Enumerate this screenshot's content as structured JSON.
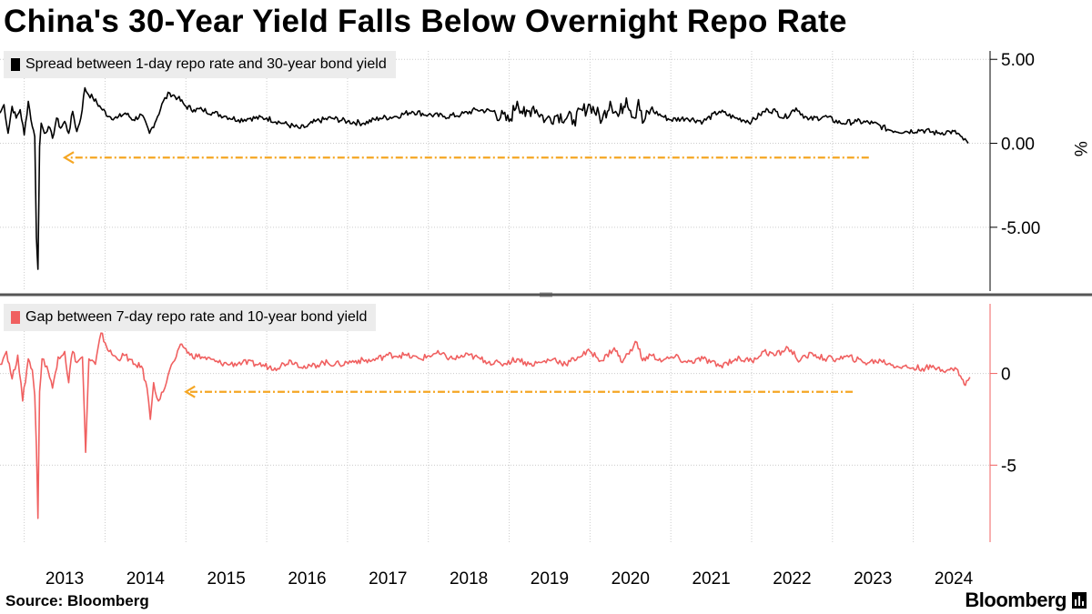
{
  "title": "China's 30-Year Yield Falls Below Overnight Repo Rate",
  "source": "Source: Bloomberg",
  "brand": "Bloomberg",
  "colors": {
    "series1": "#000000",
    "series2": "#f06060",
    "arrow": "#f5a623",
    "grid": "#cccccc"
  },
  "chart_data": [
    {
      "type": "line",
      "title": "",
      "ylabel": "%",
      "legend": "Spread between 1-day repo rate and 30-year bond yield",
      "legend_position": "top-left",
      "ylim": [
        -8.8,
        5.5
      ],
      "yticks": [
        5,
        0,
        -5
      ],
      "ytick_labels": [
        "5.00",
        "0.00",
        "-5.00"
      ],
      "x_labels": [
        "2013",
        "2014",
        "2015",
        "2016",
        "2017",
        "2018",
        "2019",
        "2020",
        "2021",
        "2022",
        "2023",
        "2024"
      ],
      "x_range": [
        2012.7,
        2024.95
      ],
      "series": [
        {
          "name": "Spread between 1-day repo rate and 30-year bond yield",
          "x": [
            2012.7,
            2012.75,
            2012.8,
            2012.85,
            2012.9,
            2012.95,
            2013.0,
            2013.05,
            2013.1,
            2013.13,
            2013.15,
            2013.17,
            2013.19,
            2013.21,
            2013.25,
            2013.3,
            2013.35,
            2013.4,
            2013.45,
            2013.5,
            2013.55,
            2013.6,
            2013.65,
            2013.7,
            2013.75,
            2013.78,
            2013.85,
            2013.95,
            2014.05,
            2014.15,
            2014.25,
            2014.35,
            2014.45,
            2014.55,
            2014.65,
            2014.72,
            2014.8,
            2014.9,
            2015.0,
            2015.1,
            2015.2,
            2015.35,
            2015.5,
            2015.65,
            2015.8,
            2016.0,
            2016.2,
            2016.4,
            2016.5,
            2016.6,
            2016.8,
            2017.0,
            2017.2,
            2017.4,
            2017.6,
            2017.8,
            2018.0,
            2018.2,
            2018.4,
            2018.6,
            2018.8,
            2019.0,
            2019.1,
            2019.2,
            2019.3,
            2019.45,
            2019.6,
            2019.8,
            2020.0,
            2020.15,
            2020.25,
            2020.35,
            2020.45,
            2020.55,
            2020.6,
            2020.65,
            2020.75,
            2020.9,
            2021.0,
            2021.2,
            2021.4,
            2021.6,
            2021.8,
            2022.0,
            2022.1,
            2022.2,
            2022.3,
            2022.4,
            2022.55,
            2022.7,
            2022.9,
            2023.1,
            2023.3,
            2023.5,
            2023.7,
            2023.9,
            2024.1,
            2024.3,
            2024.45,
            2024.55,
            2024.62,
            2024.68
          ],
          "y": [
            1.8,
            2.3,
            0.6,
            2.2,
            1.5,
            2.0,
            0.5,
            2.5,
            1.0,
            0.4,
            -5.6,
            -7.5,
            -0.2,
            1.2,
            0.6,
            1.0,
            0.3,
            1.5,
            0.9,
            1.3,
            0.6,
            1.9,
            0.7,
            1.5,
            3.3,
            3.0,
            2.7,
            2.1,
            1.6,
            1.5,
            1.8,
            1.4,
            1.7,
            0.6,
            1.6,
            2.5,
            3.0,
            2.7,
            2.2,
            2.0,
            2.0,
            1.8,
            1.6,
            1.4,
            1.5,
            1.5,
            1.2,
            0.9,
            1.0,
            1.3,
            1.5,
            1.3,
            1.2,
            1.5,
            1.6,
            1.9,
            1.7,
            1.6,
            1.7,
            2.0,
            1.9,
            1.3,
            2.5,
            1.6,
            2.2,
            1.4,
            1.7,
            1.4,
            2.3,
            1.4,
            2.5,
            1.6,
            2.7,
            1.5,
            2.6,
            1.2,
            2.0,
            1.6,
            1.4,
            1.5,
            1.3,
            1.9,
            1.5,
            1.3,
            1.7,
            2.0,
            1.9,
            1.5,
            2.1,
            1.4,
            1.6,
            1.2,
            1.3,
            1.2,
            0.8,
            0.7,
            0.8,
            0.6,
            0.7,
            0.6,
            0.2,
            0.0
          ]
        }
      ],
      "annotation": {
        "type": "arrow",
        "direction": "left",
        "x_from": 2023.45,
        "x_to": 2013.5,
        "y": -0.85
      }
    },
    {
      "type": "line",
      "title": "",
      "ylabel": "",
      "legend": "Gap between 7-day repo rate and 10-year bond yield",
      "legend_position": "top-left",
      "ylim": [
        -9.2,
        3.8
      ],
      "yticks": [
        0,
        -5
      ],
      "ytick_labels": [
        "0",
        "-5"
      ],
      "x_labels": [
        "2013",
        "2014",
        "2015",
        "2016",
        "2017",
        "2018",
        "2019",
        "2020",
        "2021",
        "2022",
        "2023",
        "2024"
      ],
      "x_range": [
        2012.7,
        2024.95
      ],
      "series": [
        {
          "name": "Gap between 7-day repo rate and 10-year bond yield",
          "x": [
            2012.7,
            2012.78,
            2012.85,
            2012.92,
            2012.98,
            2013.05,
            2013.1,
            2013.13,
            2013.15,
            2013.17,
            2013.19,
            2013.22,
            2013.28,
            2013.35,
            2013.42,
            2013.5,
            2013.55,
            2013.58,
            2013.6,
            2013.65,
            2013.72,
            2013.76,
            2013.8,
            2013.88,
            2013.95,
            2014.05,
            2014.15,
            2014.25,
            2014.35,
            2014.45,
            2014.52,
            2014.56,
            2014.6,
            2014.66,
            2014.72,
            2014.8,
            2014.88,
            2014.95,
            2015.05,
            2015.2,
            2015.4,
            2015.55,
            2015.7,
            2015.9,
            2016.1,
            2016.3,
            2016.5,
            2016.7,
            2016.9,
            2017.1,
            2017.3,
            2017.5,
            2017.7,
            2017.9,
            2018.1,
            2018.3,
            2018.5,
            2018.7,
            2018.9,
            2019.1,
            2019.25,
            2019.4,
            2019.55,
            2019.7,
            2019.85,
            2020.0,
            2020.15,
            2020.3,
            2020.4,
            2020.5,
            2020.58,
            2020.65,
            2020.75,
            2020.9,
            2021.05,
            2021.2,
            2021.4,
            2021.6,
            2021.8,
            2022.0,
            2022.15,
            2022.3,
            2022.45,
            2022.6,
            2022.75,
            2022.9,
            2023.05,
            2023.2,
            2023.4,
            2023.6,
            2023.8,
            2024.0,
            2024.15,
            2024.3,
            2024.45,
            2024.55,
            2024.6,
            2024.63,
            2024.66,
            2024.7
          ],
          "y": [
            0.5,
            1.2,
            -0.3,
            1.0,
            -1.5,
            0.8,
            0.2,
            -1.2,
            -4.0,
            -7.9,
            -1.0,
            0.8,
            0.4,
            -0.8,
            0.9,
            1.2,
            -0.5,
            0.8,
            1.2,
            0.6,
            0.9,
            -4.3,
            0.8,
            0.5,
            2.2,
            1.2,
            0.8,
            1.0,
            0.5,
            0.4,
            -0.8,
            -2.5,
            -0.5,
            -1.5,
            -1.0,
            0.2,
            0.9,
            1.6,
            1.0,
            0.9,
            0.6,
            0.5,
            0.6,
            0.5,
            0.3,
            0.7,
            0.3,
            0.6,
            0.5,
            0.7,
            0.7,
            1.0,
            1.0,
            0.8,
            1.1,
            0.8,
            1.0,
            0.7,
            0.5,
            0.8,
            0.5,
            0.6,
            0.8,
            0.5,
            0.9,
            1.2,
            0.7,
            1.4,
            0.6,
            1.3,
            1.7,
            0.7,
            1.0,
            0.7,
            0.9,
            0.6,
            0.8,
            0.4,
            0.8,
            0.7,
            1.2,
            1.0,
            1.4,
            0.7,
            1.1,
            0.8,
            0.8,
            0.9,
            0.6,
            0.7,
            0.4,
            0.3,
            0.3,
            0.3,
            0.2,
            0.2,
            -0.3,
            -0.6,
            -0.4,
            -0.2
          ]
        }
      ],
      "annotation": {
        "type": "arrow",
        "direction": "left",
        "x_from": 2023.25,
        "x_to": 2015.0,
        "y": -1.0
      }
    }
  ]
}
